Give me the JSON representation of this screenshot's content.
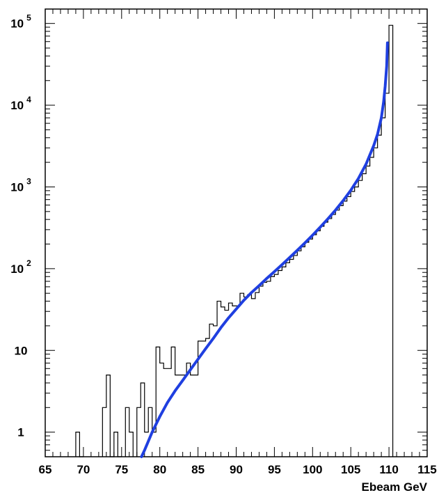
{
  "chart_data": {
    "type": "histogram",
    "title": "",
    "xlabel": "Ebeam  GeV",
    "ylabel": "",
    "xlim": [
      65,
      115
    ],
    "ylim": [
      0.5,
      150000
    ],
    "yscale": "log",
    "grid": false,
    "x_ticks": [
      "65",
      "70",
      "75",
      "80",
      "85",
      "90",
      "95",
      "100",
      "105",
      "110",
      "115"
    ],
    "y_ticks": [
      {
        "value": 1,
        "base": "1",
        "exp": ""
      },
      {
        "value": 10,
        "base": "10",
        "exp": ""
      },
      {
        "value": 100,
        "base": "10",
        "exp": "2"
      },
      {
        "value": 1000,
        "base": "10",
        "exp": "3"
      },
      {
        "value": 10000,
        "base": "10",
        "exp": "4"
      },
      {
        "value": 100000,
        "base": "10",
        "exp": "5"
      }
    ],
    "colors": {
      "histogram": "#000000",
      "fit": "#1f3fe0",
      "axes": "#000000"
    },
    "histogram": {
      "bin_width": 0.5,
      "bins": [
        [
          69.0,
          1
        ],
        [
          69.5,
          0
        ],
        [
          72.5,
          2
        ],
        [
          73.0,
          5
        ],
        [
          73.5,
          0
        ],
        [
          74.0,
          1
        ],
        [
          74.5,
          0
        ],
        [
          75.5,
          2
        ],
        [
          76.0,
          1
        ],
        [
          77.0,
          2
        ],
        [
          77.5,
          4
        ],
        [
          78.0,
          1
        ],
        [
          78.5,
          2
        ],
        [
          79.0,
          1
        ],
        [
          79.5,
          11
        ],
        [
          80.0,
          7
        ],
        [
          80.5,
          6
        ],
        [
          81.0,
          6
        ],
        [
          81.5,
          11
        ],
        [
          82.0,
          5
        ],
        [
          82.5,
          5
        ],
        [
          83.0,
          5
        ],
        [
          83.5,
          7
        ],
        [
          84.0,
          5
        ],
        [
          84.5,
          5
        ],
        [
          85.0,
          13
        ],
        [
          85.5,
          13
        ],
        [
          86.0,
          14
        ],
        [
          86.5,
          21
        ],
        [
          87.0,
          20
        ],
        [
          87.5,
          40
        ],
        [
          88.0,
          34
        ],
        [
          88.5,
          31
        ],
        [
          89.0,
          38
        ],
        [
          89.5,
          35
        ],
        [
          90.0,
          35
        ],
        [
          90.5,
          50
        ],
        [
          91.0,
          45
        ],
        [
          91.5,
          48
        ],
        [
          92.0,
          43
        ],
        [
          92.5,
          51
        ],
        [
          93.0,
          61
        ],
        [
          93.5,
          68
        ],
        [
          94.0,
          70
        ],
        [
          94.5,
          80
        ],
        [
          95.0,
          85
        ],
        [
          95.5,
          95
        ],
        [
          96.0,
          105
        ],
        [
          96.5,
          118
        ],
        [
          97.0,
          130
        ],
        [
          97.5,
          145
        ],
        [
          98.0,
          165
        ],
        [
          98.5,
          185
        ],
        [
          99.0,
          210
        ],
        [
          99.5,
          230
        ],
        [
          100.0,
          260
        ],
        [
          100.5,
          290
        ],
        [
          101.0,
          330
        ],
        [
          101.5,
          370
        ],
        [
          102.0,
          410
        ],
        [
          102.5,
          460
        ],
        [
          103.0,
          520
        ],
        [
          103.5,
          590
        ],
        [
          104.0,
          670
        ],
        [
          104.5,
          760
        ],
        [
          105.0,
          880
        ],
        [
          105.5,
          1000
        ],
        [
          106.0,
          1200
        ],
        [
          106.5,
          1450
        ],
        [
          107.0,
          1800
        ],
        [
          107.5,
          2300
        ],
        [
          108.0,
          3000
        ],
        [
          108.5,
          4300
        ],
        [
          109.0,
          7000
        ],
        [
          109.5,
          14000
        ],
        [
          110.0,
          95000
        ]
      ]
    },
    "fit": {
      "name": "",
      "points": [
        [
          77.6,
          0.5
        ],
        [
          78.0,
          0.6
        ],
        [
          79.0,
          1.0
        ],
        [
          80.0,
          1.55
        ],
        [
          81.0,
          2.3
        ],
        [
          82.0,
          3.2
        ],
        [
          83.0,
          4.3
        ],
        [
          84.0,
          5.8
        ],
        [
          85.0,
          7.8
        ],
        [
          86.0,
          10.5
        ],
        [
          87.0,
          14.0
        ],
        [
          88.0,
          19.0
        ],
        [
          89.0,
          25.0
        ],
        [
          90.0,
          32.0
        ],
        [
          91.0,
          41.0
        ],
        [
          92.0,
          51.0
        ],
        [
          93.0,
          62.0
        ],
        [
          94.0,
          76.0
        ],
        [
          95.0,
          92.0
        ],
        [
          96.0,
          112.0
        ],
        [
          97.0,
          137.0
        ],
        [
          98.0,
          168.0
        ],
        [
          99.0,
          207.0
        ],
        [
          100.0,
          257.0
        ],
        [
          101.0,
          322.0
        ],
        [
          102.0,
          407.0
        ],
        [
          103.0,
          520.0
        ],
        [
          104.0,
          680.0
        ],
        [
          105.0,
          910.0
        ],
        [
          106.0,
          1270.0
        ],
        [
          107.0,
          1900.0
        ],
        [
          108.0,
          3200.0
        ],
        [
          108.5,
          4400.0
        ],
        [
          109.0,
          7000.0
        ],
        [
          109.3,
          11000.0
        ],
        [
          109.5,
          17000.0
        ],
        [
          109.7,
          30000.0
        ],
        [
          109.8,
          58000.0
        ]
      ]
    }
  }
}
